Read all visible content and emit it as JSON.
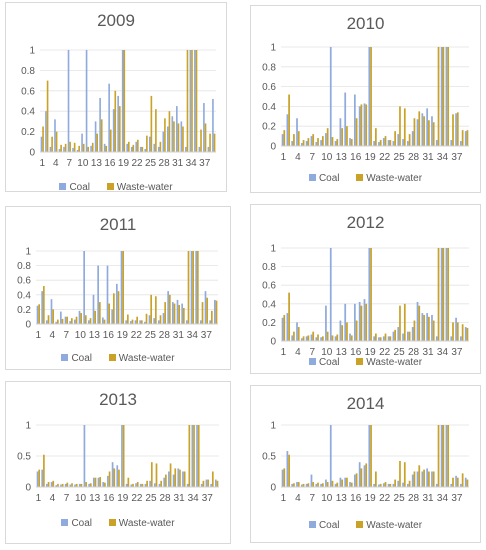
{
  "chart_data": [
    {
      "type": "bar",
      "title": "2009",
      "categories": [
        1,
        2,
        3,
        4,
        5,
        6,
        7,
        8,
        9,
        10,
        11,
        12,
        13,
        14,
        15,
        16,
        17,
        18,
        19,
        20,
        21,
        22,
        23,
        24,
        25,
        26,
        27,
        28,
        29,
        30,
        31,
        32,
        33,
        34,
        35,
        36,
        37,
        38,
        39
      ],
      "tick_labels": [
        "1",
        "4",
        "7",
        "10",
        "13",
        "16",
        "19",
        "22",
        "25",
        "28",
        "31",
        "34",
        "37"
      ],
      "yticks": [
        "0",
        "0.2",
        "0.4",
        "0.6",
        "0.8",
        "1"
      ],
      "ylim": [
        0,
        1
      ],
      "legend": "bottom",
      "series": [
        {
          "name": "Coal",
          "color": "#8faadc",
          "values": [
            0.15,
            0.4,
            0.05,
            0.32,
            0.03,
            0.05,
            1.0,
            0.04,
            0.02,
            0.18,
            1.0,
            0.06,
            0.3,
            0.53,
            0.08,
            0.67,
            0.42,
            0.55,
            1.0,
            0.08,
            0.05,
            0.1,
            0.05,
            0.03,
            0.15,
            0.08,
            0.05,
            0.2,
            0.25,
            0.35,
            0.45,
            0.3,
            0.05,
            1.0,
            1.0,
            0.05,
            0.48,
            0.05,
            0.52
          ]
        },
        {
          "name": "Waste-water",
          "color": "#c9a227",
          "values": [
            0.25,
            0.7,
            0.15,
            0.2,
            0.07,
            0.08,
            0.1,
            0.09,
            0.06,
            0.08,
            0.05,
            0.09,
            0.18,
            0.32,
            0.06,
            0.22,
            0.6,
            0.45,
            1.0,
            0.1,
            0.07,
            0.12,
            0.05,
            0.16,
            0.55,
            0.42,
            0.1,
            0.33,
            0.4,
            0.3,
            0.28,
            0.25,
            1.0,
            1.0,
            1.0,
            0.22,
            0.28,
            0.18,
            0.18
          ]
        }
      ]
    },
    {
      "type": "bar",
      "title": "2010",
      "categories": [
        1,
        2,
        3,
        4,
        5,
        6,
        7,
        8,
        9,
        10,
        11,
        12,
        13,
        14,
        15,
        16,
        17,
        18,
        19,
        20,
        21,
        22,
        23,
        24,
        25,
        26,
        27,
        28,
        29,
        30,
        31,
        32,
        33,
        34,
        35,
        36,
        37,
        38,
        39
      ],
      "tick_labels": [
        "1",
        "4",
        "7",
        "10",
        "13",
        "16",
        "19",
        "22",
        "25",
        "28",
        "31",
        "34",
        "37"
      ],
      "yticks": [
        "0",
        "0.2",
        "0.4",
        "0.6",
        "0.8",
        "1"
      ],
      "ylim": [
        0,
        1
      ],
      "legend": "bottom",
      "series": [
        {
          "name": "Coal",
          "color": "#8faadc",
          "values": [
            0.12,
            0.32,
            0.05,
            0.28,
            0.03,
            0.05,
            0.1,
            0.04,
            0.06,
            0.13,
            1.0,
            0.05,
            0.28,
            0.54,
            0.08,
            0.52,
            0.4,
            0.43,
            1.0,
            0.05,
            0.04,
            0.08,
            0.06,
            0.05,
            0.12,
            0.07,
            0.05,
            0.15,
            0.27,
            0.33,
            0.38,
            0.3,
            0.06,
            1.0,
            1.0,
            0.06,
            0.33,
            0.05,
            0.15
          ]
        },
        {
          "name": "Waste-water",
          "color": "#c9a227",
          "values": [
            0.16,
            0.52,
            0.12,
            0.15,
            0.06,
            0.08,
            0.12,
            0.08,
            0.1,
            0.18,
            0.09,
            0.07,
            0.18,
            0.2,
            0.07,
            0.28,
            0.42,
            0.42,
            1.0,
            0.18,
            0.06,
            0.1,
            0.06,
            0.15,
            0.4,
            0.38,
            0.12,
            0.28,
            0.35,
            0.3,
            0.26,
            0.24,
            1.0,
            1.0,
            1.0,
            0.32,
            0.34,
            0.16,
            0.16
          ]
        }
      ]
    },
    {
      "type": "bar",
      "title": "2011",
      "categories": [
        1,
        2,
        3,
        4,
        5,
        6,
        7,
        8,
        9,
        10,
        11,
        12,
        13,
        14,
        15,
        16,
        17,
        18,
        19,
        20,
        21,
        22,
        23,
        24,
        25,
        26,
        27,
        28,
        29,
        30,
        31,
        32,
        33,
        34,
        35,
        36,
        37,
        38,
        39
      ],
      "tick_labels": [
        "1",
        "4",
        "7",
        "10",
        "13",
        "16",
        "19",
        "22",
        "25",
        "28",
        "31",
        "34",
        "37"
      ],
      "yticks": [
        "0",
        "0.2",
        "0.4",
        "0.6",
        "0.8",
        "1"
      ],
      "ylim": [
        0,
        1
      ],
      "legend": "bottom",
      "series": [
        {
          "name": "Coal",
          "color": "#8faadc",
          "values": [
            0.25,
            0.45,
            0.05,
            0.34,
            0.03,
            0.17,
            0.1,
            0.04,
            0.06,
            0.18,
            1.0,
            0.05,
            0.4,
            0.8,
            0.09,
            0.8,
            0.2,
            0.55,
            1.0,
            0.05,
            0.04,
            0.05,
            0.05,
            0.03,
            0.12,
            0.08,
            0.05,
            0.15,
            0.45,
            0.3,
            0.33,
            0.28,
            0.05,
            1.0,
            1.0,
            0.05,
            0.45,
            0.05,
            0.33
          ]
        },
        {
          "name": "Waste-water",
          "color": "#c9a227",
          "values": [
            0.27,
            0.52,
            0.12,
            0.2,
            0.06,
            0.07,
            0.1,
            0.08,
            0.1,
            0.15,
            0.12,
            0.08,
            0.18,
            0.3,
            0.06,
            0.28,
            0.42,
            0.45,
            1.0,
            0.13,
            0.06,
            0.1,
            0.05,
            0.14,
            0.4,
            0.38,
            0.12,
            0.3,
            0.4,
            0.28,
            0.26,
            0.22,
            1.0,
            1.0,
            1.0,
            0.3,
            0.36,
            0.18,
            0.32
          ]
        }
      ]
    },
    {
      "type": "bar",
      "title": "2012",
      "categories": [
        1,
        2,
        3,
        4,
        5,
        6,
        7,
        8,
        9,
        10,
        11,
        12,
        13,
        14,
        15,
        16,
        17,
        18,
        19,
        20,
        21,
        22,
        23,
        24,
        25,
        26,
        27,
        28,
        29,
        30,
        31,
        32,
        33,
        34,
        35,
        36,
        37,
        38,
        39
      ],
      "tick_labels": [
        "1",
        "4",
        "7",
        "10",
        "13",
        "16",
        "19",
        "22",
        "25",
        "28",
        "31",
        "34",
        "37"
      ],
      "yticks": [
        "0",
        "0.2",
        "0.4",
        "0.6",
        "0.8",
        "1"
      ],
      "ylim": [
        0,
        1
      ],
      "legend": "bottom",
      "series": [
        {
          "name": "Coal",
          "color": "#8faadc",
          "values": [
            0.25,
            0.3,
            0.06,
            0.2,
            0.03,
            0.05,
            0.07,
            0.04,
            0.04,
            0.38,
            1.0,
            0.05,
            0.22,
            0.4,
            0.08,
            0.4,
            0.42,
            0.45,
            1.0,
            0.05,
            0.04,
            0.05,
            0.05,
            0.1,
            0.15,
            0.08,
            0.1,
            0.15,
            0.42,
            0.3,
            0.3,
            0.28,
            0.05,
            1.0,
            1.0,
            0.05,
            0.25,
            0.05,
            0.15
          ]
        },
        {
          "name": "Waste-water",
          "color": "#c9a227",
          "values": [
            0.28,
            0.52,
            0.1,
            0.15,
            0.05,
            0.06,
            0.1,
            0.07,
            0.05,
            0.1,
            0.06,
            0.07,
            0.17,
            0.2,
            0.06,
            0.22,
            0.38,
            0.4,
            1.0,
            0.08,
            0.04,
            0.08,
            0.05,
            0.12,
            0.38,
            0.4,
            0.1,
            0.22,
            0.38,
            0.28,
            0.26,
            0.22,
            1.0,
            1.0,
            1.0,
            0.2,
            0.2,
            0.18,
            0.14
          ]
        }
      ]
    },
    {
      "type": "bar",
      "title": "2013",
      "categories": [
        1,
        2,
        3,
        4,
        5,
        6,
        7,
        8,
        9,
        10,
        11,
        12,
        13,
        14,
        15,
        16,
        17,
        18,
        19,
        20,
        21,
        22,
        23,
        24,
        25,
        26,
        27,
        28,
        29,
        30,
        31,
        32,
        33,
        34,
        35,
        36,
        37,
        38,
        39
      ],
      "tick_labels": [
        "1",
        "4",
        "7",
        "10",
        "13",
        "16",
        "19",
        "22",
        "25",
        "28",
        "31",
        "34",
        "37"
      ],
      "yticks": [
        "0",
        "0.5",
        "1"
      ],
      "ylim": [
        0,
        1
      ],
      "legend": "bottom",
      "series": [
        {
          "name": "Coal",
          "color": "#8faadc",
          "values": [
            0.25,
            0.28,
            0.05,
            0.08,
            0.03,
            0.04,
            0.05,
            0.04,
            0.04,
            0.05,
            1.0,
            0.05,
            0.15,
            0.15,
            0.08,
            0.18,
            0.4,
            0.35,
            1.0,
            0.05,
            0.04,
            0.06,
            0.05,
            0.05,
            0.1,
            0.06,
            0.05,
            0.15,
            0.25,
            0.2,
            0.3,
            0.25,
            0.05,
            1.0,
            1.0,
            0.05,
            0.12,
            0.05,
            0.12
          ]
        },
        {
          "name": "Waste-water",
          "color": "#c9a227",
          "values": [
            0.28,
            0.52,
            0.08,
            0.1,
            0.05,
            0.05,
            0.07,
            0.06,
            0.05,
            0.05,
            0.08,
            0.06,
            0.15,
            0.16,
            0.07,
            0.25,
            0.3,
            0.28,
            1.0,
            0.15,
            0.05,
            0.08,
            0.05,
            0.1,
            0.4,
            0.38,
            0.1,
            0.2,
            0.38,
            0.3,
            0.28,
            0.25,
            1.0,
            1.0,
            1.0,
            0.1,
            0.12,
            0.25,
            0.1
          ]
        }
      ]
    },
    {
      "type": "bar",
      "title": "2014",
      "categories": [
        1,
        2,
        3,
        4,
        5,
        6,
        7,
        8,
        9,
        10,
        11,
        12,
        13,
        14,
        15,
        16,
        17,
        18,
        19,
        20,
        21,
        22,
        23,
        24,
        25,
        26,
        27,
        28,
        29,
        30,
        31,
        32,
        33,
        34,
        35,
        36,
        37,
        38,
        39
      ],
      "tick_labels": [
        "1",
        "4",
        "7",
        "10",
        "13",
        "16",
        "19",
        "22",
        "25",
        "28",
        "31",
        "34",
        "37"
      ],
      "yticks": [
        "0",
        "0.5",
        "1"
      ],
      "ylim": [
        0,
        1
      ],
      "legend": "bottom",
      "series": [
        {
          "name": "Coal",
          "color": "#8faadc",
          "values": [
            0.28,
            0.58,
            0.05,
            0.08,
            0.04,
            0.05,
            0.2,
            0.05,
            0.05,
            0.12,
            1.0,
            0.05,
            0.15,
            0.15,
            0.08,
            0.2,
            0.4,
            0.35,
            1.0,
            0.05,
            0.04,
            0.06,
            0.05,
            0.05,
            0.1,
            0.07,
            0.05,
            0.2,
            0.25,
            0.25,
            0.3,
            0.25,
            0.05,
            1.0,
            1.0,
            0.05,
            0.18,
            0.05,
            0.15
          ]
        },
        {
          "name": "Waste-water",
          "color": "#c9a227",
          "values": [
            0.3,
            0.52,
            0.06,
            0.08,
            0.05,
            0.06,
            0.08,
            0.07,
            0.06,
            0.08,
            0.1,
            0.07,
            0.12,
            0.15,
            0.07,
            0.22,
            0.3,
            0.38,
            1.0,
            0.25,
            0.05,
            0.08,
            0.05,
            0.12,
            0.42,
            0.4,
            0.1,
            0.25,
            0.35,
            0.28,
            0.25,
            0.25,
            1.0,
            1.0,
            1.0,
            0.15,
            0.15,
            0.22,
            0.12
          ]
        }
      ]
    }
  ]
}
